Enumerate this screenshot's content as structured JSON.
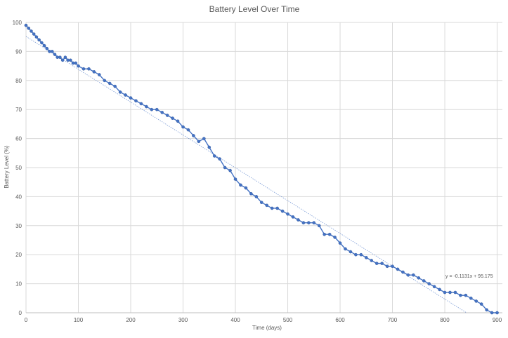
{
  "chart_data": {
    "type": "scatter",
    "title": "Battery Level Over Time",
    "xlabel": "Time (days)",
    "ylabel": "Battery Level (%)",
    "xlim": [
      0,
      910
    ],
    "ylim": [
      0,
      100
    ],
    "x_ticks": [
      0,
      100,
      200,
      300,
      400,
      500,
      600,
      700,
      800,
      900
    ],
    "y_ticks": [
      0,
      10,
      20,
      30,
      40,
      50,
      60,
      70,
      80,
      90,
      100
    ],
    "grid": true,
    "legend": "none",
    "trendline": {
      "type": "linear",
      "slope": -0.1131,
      "intercept": 95.175,
      "label": "y = -0.1131x + 95.175"
    },
    "series": [
      {
        "color": "#4472c4",
        "x": [
          0,
          5,
          10,
          15,
          20,
          25,
          30,
          35,
          40,
          45,
          50,
          55,
          60,
          65,
          70,
          75,
          80,
          85,
          90,
          95,
          100,
          110,
          120,
          130,
          140,
          150,
          160,
          170,
          180,
          190,
          200,
          210,
          220,
          230,
          240,
          250,
          260,
          270,
          280,
          290,
          300,
          310,
          320,
          330,
          340,
          350,
          360,
          370,
          380,
          390,
          400,
          410,
          420,
          430,
          440,
          450,
          460,
          470,
          480,
          490,
          500,
          510,
          520,
          530,
          540,
          550,
          560,
          570,
          580,
          590,
          600,
          610,
          620,
          630,
          640,
          650,
          660,
          670,
          680,
          690,
          700,
          710,
          720,
          730,
          740,
          750,
          760,
          770,
          780,
          790,
          800,
          810,
          820,
          830,
          840,
          850,
          860,
          870,
          880,
          890,
          900
        ],
        "y": [
          99,
          98,
          97,
          96,
          95,
          94,
          93,
          92,
          91,
          90,
          90,
          89,
          88,
          88,
          87,
          88,
          87,
          87,
          86,
          86,
          85,
          84,
          84,
          83,
          82,
          80,
          79,
          78,
          76,
          75,
          74,
          73,
          72,
          71,
          70,
          70,
          69,
          68,
          67,
          66,
          64,
          63,
          61,
          59,
          60,
          57,
          54,
          53,
          50,
          49,
          46,
          44,
          43,
          41,
          40,
          38,
          37,
          36,
          36,
          35,
          34,
          33,
          32,
          31,
          31,
          31,
          30,
          27,
          27,
          26,
          24,
          22,
          21,
          20,
          20,
          19,
          18,
          17,
          17,
          16,
          16,
          15,
          14,
          13,
          13,
          12,
          11,
          10,
          9,
          8,
          7,
          7,
          7,
          6,
          6,
          5,
          4,
          3,
          1,
          0,
          0
        ]
      }
    ]
  }
}
